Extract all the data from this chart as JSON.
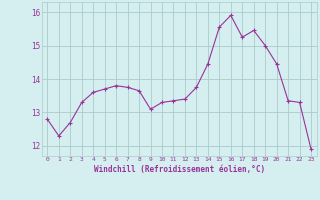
{
  "x": [
    0,
    1,
    2,
    3,
    4,
    5,
    6,
    7,
    8,
    9,
    10,
    11,
    12,
    13,
    14,
    15,
    16,
    17,
    18,
    19,
    20,
    21,
    22,
    23
  ],
  "y": [
    12.8,
    12.3,
    12.7,
    13.3,
    13.6,
    13.7,
    13.8,
    13.75,
    13.65,
    13.1,
    13.3,
    13.35,
    13.4,
    13.75,
    14.45,
    15.55,
    15.9,
    15.25,
    15.45,
    15.0,
    14.45,
    13.35,
    13.3,
    11.9
  ],
  "line_color": "#993399",
  "marker": "+",
  "bg_color": "#d5eef0",
  "grid_color": "#aacccc",
  "xlabel": "Windchill (Refroidissement éolien,°C)",
  "ylabel_ticks": [
    12,
    13,
    14,
    15,
    16
  ],
  "xlim": [
    -0.5,
    23.5
  ],
  "ylim": [
    11.7,
    16.3
  ],
  "tick_color": "#993399",
  "xlabel_color": "#993399",
  "fig_bg": "#d5eef0"
}
